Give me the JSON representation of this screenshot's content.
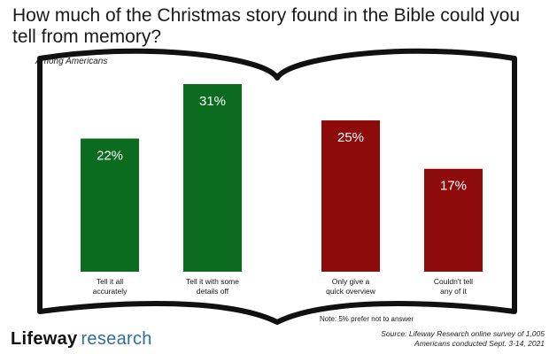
{
  "title": "How much of the Christmas story found in the Bible could you tell from memory?",
  "subtitle": "Among Americans",
  "note": "Note: 5% prefer not to answer",
  "brand": {
    "part1": "Lifeway",
    "part2": "research"
  },
  "source": "Source: Lifeway Research online survey of 1,005 Americans conducted Sept. 3-14, 2021",
  "chart_data": {
    "type": "bar",
    "categories": [
      [
        "Tell it all",
        "accurately"
      ],
      [
        "Tell it with some",
        "details off"
      ],
      [
        "Only give a",
        "quick overview"
      ],
      [
        "Couldn't tell",
        "any of it"
      ]
    ],
    "values": [
      22,
      31,
      25,
      17
    ],
    "value_labels": [
      "22%",
      "31%",
      "25%",
      "17%"
    ],
    "colors": [
      "#0b6b1e",
      "#0b6b1e",
      "#8e0b0b",
      "#8e0b0b"
    ],
    "ylim": [
      0,
      31
    ],
    "title": "How much of the Christmas story found in the Bible could you tell from memory?",
    "xlabel": "",
    "ylabel": ""
  }
}
